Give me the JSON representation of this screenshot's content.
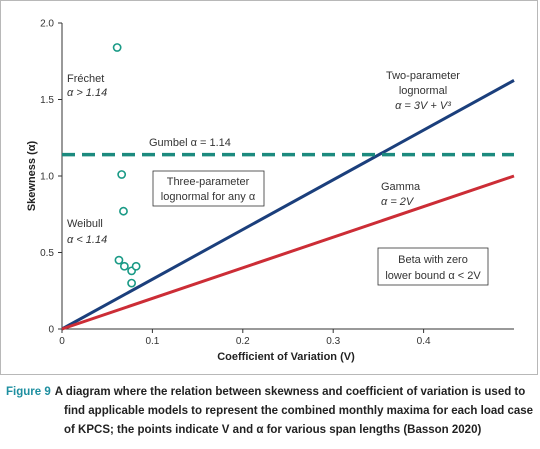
{
  "chart_data": {
    "type": "scatter",
    "xlabel": "Coefficient of Variation (V)",
    "ylabel": "Skewness (α)",
    "xlim": [
      0,
      0.5
    ],
    "ylim": [
      0,
      2.0
    ],
    "x_ticks": [
      "0",
      "0.1",
      "0.2",
      "0.3",
      "0.4"
    ],
    "x_tick_values": [
      0,
      0.1,
      0.2,
      0.3,
      0.4
    ],
    "y_ticks": [
      "0",
      "0.5",
      "1.0",
      "1.5",
      "2.0"
    ],
    "y_tick_values": [
      0,
      0.5,
      1.0,
      1.5,
      2.0
    ],
    "grid": false,
    "points": [
      {
        "x": 0.061,
        "y": 1.84
      },
      {
        "x": 0.066,
        "y": 1.01
      },
      {
        "x": 0.068,
        "y": 0.77
      },
      {
        "x": 0.063,
        "y": 0.45
      },
      {
        "x": 0.069,
        "y": 0.41
      },
      {
        "x": 0.077,
        "y": 0.38
      },
      {
        "x": 0.082,
        "y": 0.41
      },
      {
        "x": 0.077,
        "y": 0.3
      }
    ],
    "lines": [
      {
        "kind": "lognormal",
        "x": [
          0,
          0.5
        ],
        "y": [
          0,
          1.625
        ],
        "color": "#1b3f7c"
      },
      {
        "kind": "gamma",
        "x": [
          0,
          0.5
        ],
        "y": [
          0,
          1.0
        ],
        "color": "#cc2d36"
      },
      {
        "kind": "gumbel",
        "x": [
          0,
          0.5
        ],
        "y": [
          1.14,
          1.14
        ],
        "color": "#1c8a7e",
        "dashed": true
      }
    ],
    "point_color": "#1a9a86",
    "annotations": {
      "frechet_1": "Fréchet",
      "frechet_2": "α > 1.14",
      "weibull_1": "Weibull",
      "weibull_2": "α < 1.14",
      "gumbel": "Gumbel α = 1.14",
      "two_param_1": "Two-parameter",
      "two_param_2": "lognormal",
      "two_param_3": "α = 3V + V³",
      "three_param_1": "Three-parameter",
      "three_param_2": "lognormal for any α",
      "gamma_1": "Gamma",
      "gamma_2": "α = 2V",
      "beta_1": "Beta with zero",
      "beta_2": "lower bound α < 2V"
    }
  },
  "caption": {
    "label": "Figure 9",
    "line1": "A diagram where the relation between skewness and coefficient of variation is used to",
    "line2": "find applicable models to represent the combined monthly maxima for each load case",
    "line3": "of KPCS; the points indicate V and α for various span lengths (Basson 2020)"
  }
}
